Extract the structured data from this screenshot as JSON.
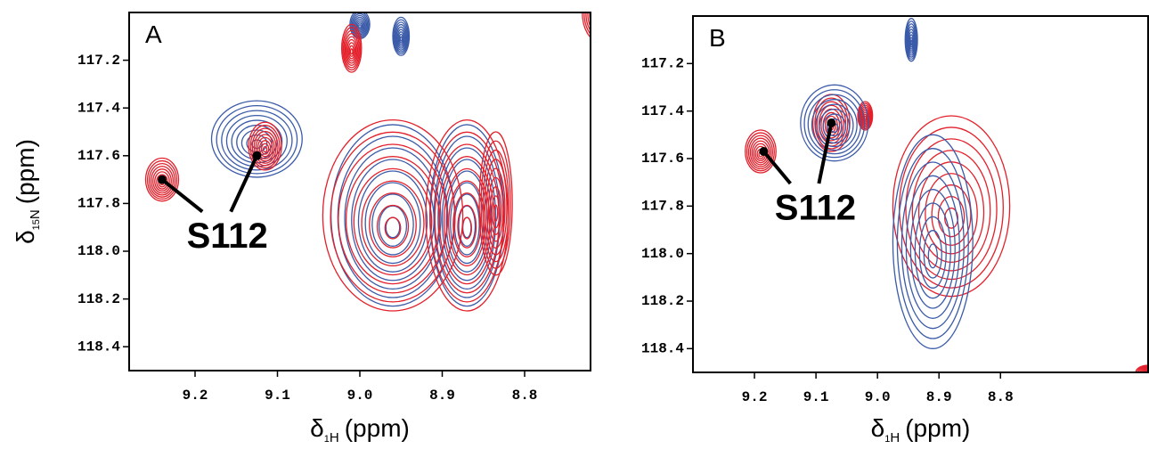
{
  "chart_data": [
    {
      "type": "contour",
      "panel_label": "A",
      "x_label": {
        "symbol": "δ",
        "mass": "1",
        "nucleus": "H",
        "unit": "(ppm)"
      },
      "y_label": {
        "symbol": "δ",
        "mass": "15",
        "nucleus": "N",
        "unit": "(ppm)"
      },
      "xlim": [
        9.28,
        8.72
      ],
      "ylim": [
        117.0,
        118.5
      ],
      "x_reversed": true,
      "y_reversed": true,
      "xticks": [
        9.2,
        9.1,
        {
          "value": 9.0,
          "label": "9.0"
        },
        8.9,
        8.8
      ],
      "yticks": [
        117.2,
        117.4,
        117.6,
        117.8,
        {
          "value": 118.0,
          "label": "118.0"
        },
        118.2,
        118.4
      ],
      "series": [
        {
          "color": "#3b5ba9",
          "peaks": {
            "x": [
              9.125,
              8.96,
              8.87,
              9.0,
              8.95
            ],
            "y": [
              117.53,
              117.85,
              117.85,
              117.05,
              117.1
            ],
            "x_width": [
              0.055,
              0.075,
              0.045,
              0.012,
              0.01
            ],
            "y_width": [
              0.16,
              0.38,
              0.38,
              0.06,
              0.08
            ]
          }
        },
        {
          "color": "#e3202b",
          "peaks": {
            "x": [
              9.24,
              9.115,
              8.96,
              8.87,
              8.835,
              9.01,
              8.71
            ],
            "y": [
              117.7,
              117.56,
              117.85,
              117.85,
              117.8,
              117.15,
              117.0
            ],
            "x_width": [
              0.02,
              0.02,
              0.085,
              0.05,
              0.02,
              0.012,
              0.02
            ],
            "y_width": [
              0.09,
              0.1,
              0.4,
              0.4,
              0.3,
              0.1,
              0.12
            ]
          }
        }
      ],
      "annotation": {
        "text": "S112",
        "x": [
          9.24,
          9.125
        ],
        "y": [
          117.7,
          117.6
        ]
      }
    },
    {
      "type": "contour",
      "panel_label": "B",
      "x_label": {
        "symbol": "δ",
        "mass": "1",
        "nucleus": "H",
        "unit": "(ppm)"
      },
      "xlim": [
        9.3,
        8.56
      ],
      "ylim": [
        117.0,
        118.5
      ],
      "x_reversed": true,
      "y_reversed": true,
      "xticks": [
        9.2,
        9.1,
        {
          "value": 9.0,
          "label": "9.0"
        },
        8.9,
        8.8
      ],
      "yticks": [
        117.2,
        117.4,
        117.6,
        117.8,
        {
          "value": 118.0,
          "label": "118.0"
        },
        118.2,
        118.4
      ],
      "series": [
        {
          "color": "#e3202b",
          "peaks": {
            "x": [
              9.19,
              9.075,
              9.02,
              8.88,
              8.56
            ],
            "y": [
              117.57,
              117.45,
              117.42,
              117.8,
              118.5
            ],
            "x_width": [
              0.025,
              0.03,
              0.012,
              0.095,
              0.02
            ],
            "y_width": [
              0.09,
              0.12,
              0.06,
              0.38,
              0.03
            ]
          }
        },
        {
          "color": "#3b5ba9",
          "peaks": {
            "x": [
              9.07,
              8.91,
              8.945
            ],
            "y": [
              117.45,
              117.95,
              117.1
            ],
            "x_width": [
              0.055,
              0.065,
              0.01
            ],
            "y_width": [
              0.16,
              0.45,
              0.09
            ]
          }
        }
      ],
      "annotation": {
        "text": "S112",
        "x": [
          9.185,
          9.075
        ],
        "y": [
          117.57,
          117.45
        ]
      }
    }
  ]
}
